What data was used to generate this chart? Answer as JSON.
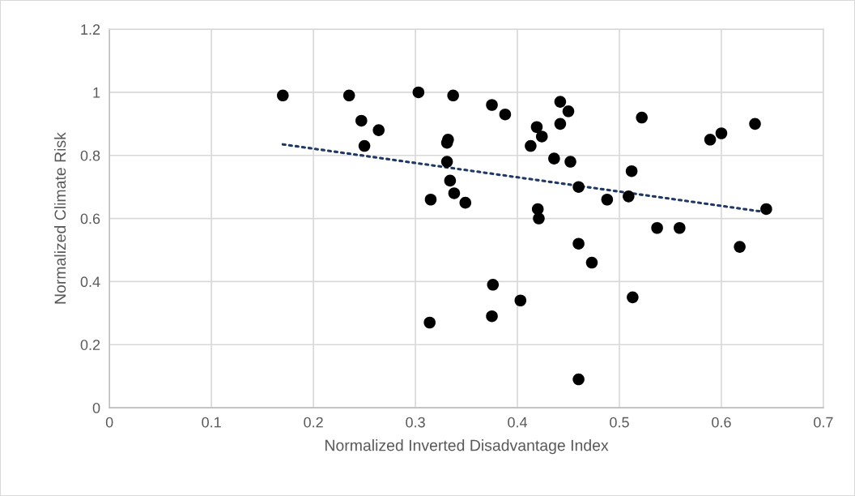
{
  "chart_data": {
    "type": "scatter",
    "xlabel": "Normalized Inverted Disadvantage Index",
    "ylabel": "Normalized Climate Risk",
    "xlim": [
      0,
      0.7
    ],
    "xticks": [
      0,
      0.1,
      0.2,
      0.3,
      0.4,
      0.5,
      0.6,
      0.7
    ],
    "ylim": [
      0,
      1.2
    ],
    "yticks": [
      0,
      0.2,
      0.4,
      0.6,
      0.8,
      1,
      1.2
    ],
    "grid": true,
    "legend": false,
    "marker": "circle",
    "series": [
      {
        "color": "#000000",
        "x": [
          0.17,
          0.235,
          0.247,
          0.25,
          0.264,
          0.303,
          0.314,
          0.315,
          0.331,
          0.332,
          0.331,
          0.334,
          0.337,
          0.338,
          0.349,
          0.375,
          0.375,
          0.376,
          0.388,
          0.403,
          0.413,
          0.419,
          0.42,
          0.421,
          0.424,
          0.436,
          0.442,
          0.442,
          0.45,
          0.452,
          0.46,
          0.46,
          0.46,
          0.473,
          0.488,
          0.509,
          0.512,
          0.513,
          0.522,
          0.537,
          0.559,
          0.589,
          0.6,
          0.618,
          0.633,
          0.644
        ],
        "values": [
          0.99,
          0.99,
          0.91,
          0.83,
          0.88,
          1.0,
          0.27,
          0.66,
          0.84,
          0.85,
          0.78,
          0.72,
          0.99,
          0.68,
          0.65,
          0.96,
          0.29,
          0.39,
          0.93,
          0.34,
          0.83,
          0.89,
          0.63,
          0.6,
          0.86,
          0.79,
          0.97,
          0.9,
          0.94,
          0.78,
          0.7,
          0.52,
          0.09,
          0.46,
          0.66,
          0.67,
          0.75,
          0.35,
          0.92,
          0.57,
          0.57,
          0.85,
          0.87,
          0.51,
          0.9,
          0.63
        ]
      },
      {
        "type": "line",
        "color": "#1f3864",
        "line_style": "dotted",
        "marker": "none",
        "x": [
          0.17,
          0.644
        ],
        "values": [
          0.835,
          0.62
        ]
      }
    ]
  }
}
